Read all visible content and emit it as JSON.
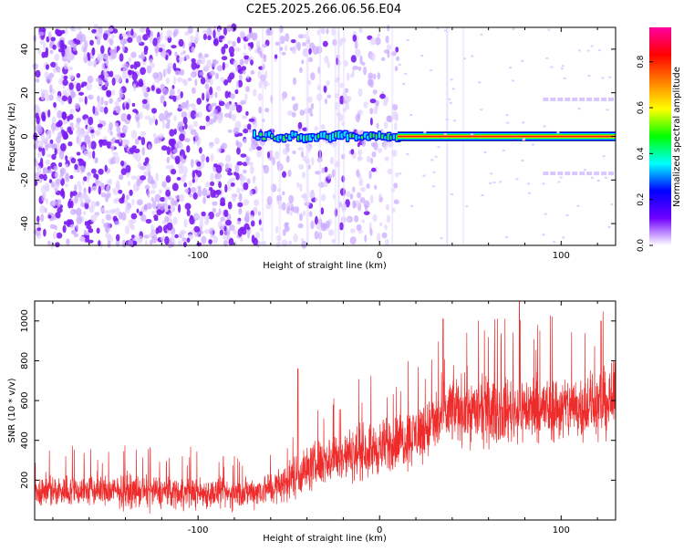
{
  "title": "C2E5.2025.266.06.56.E04",
  "chart_data": [
    {
      "type": "heatmap",
      "xlabel": "Height of straight line (km)",
      "ylabel": "Frequency (Hz)",
      "xlim": [
        -190,
        130
      ],
      "ylim": [
        -50,
        50
      ],
      "xticks": [
        -100,
        0,
        100
      ],
      "yticks": [
        -40,
        -20,
        0,
        20,
        40
      ],
      "colorbar": {
        "label": "Normalized spectral amplitude",
        "range": [
          0,
          0.95
        ],
        "ticks": [
          0.0,
          0.2,
          0.4,
          0.6,
          0.8
        ],
        "colormap": [
          "#ffffff",
          "#7000ff",
          "#0000ff",
          "#00ffff",
          "#00ff00",
          "#ffff00",
          "#ff8000",
          "#ff0000",
          "#ff00a0"
        ]
      },
      "features": [
        {
          "name": "noise-dense",
          "x_range": [
            -190,
            -65
          ],
          "y_range": [
            -50,
            50
          ],
          "level": 0.1
        },
        {
          "name": "noise-sparse",
          "x_range": [
            -65,
            10
          ],
          "y_range": [
            -50,
            50
          ],
          "level": 0.05
        },
        {
          "name": "carrier-fragmented",
          "x_range": [
            -70,
            10
          ],
          "y": 0,
          "level": 0.4
        },
        {
          "name": "carrier-steady",
          "x_range": [
            10,
            130
          ],
          "y": 0,
          "level": 0.95
        },
        {
          "name": "sideband-upper",
          "x_range": [
            90,
            130
          ],
          "y": 17,
          "level": 0.05
        },
        {
          "name": "sideband-lower",
          "x_range": [
            90,
            130
          ],
          "y": -17,
          "level": 0.05
        }
      ]
    },
    {
      "type": "line",
      "xlabel": "Height of straight line (km)",
      "ylabel": "SNR (10 * v/v)",
      "xlim": [
        -190,
        130
      ],
      "ylim": [
        0,
        1100
      ],
      "xticks": [
        -100,
        0,
        100
      ],
      "yticks": [
        200,
        400,
        600,
        800,
        1000
      ],
      "color": "#ee2c2c",
      "envelope": {
        "x": [
          -190,
          -150,
          -110,
          -80,
          -65,
          -55,
          -45,
          -30,
          -15,
          0,
          10,
          20,
          30,
          40,
          60,
          80,
          100,
          120,
          130
        ],
        "mean": [
          150,
          145,
          140,
          130,
          150,
          170,
          230,
          300,
          330,
          360,
          390,
          430,
          480,
          560,
          540,
          560,
          560,
          580,
          600
        ],
        "spread": [
          130,
          130,
          130,
          120,
          130,
          150,
          180,
          200,
          210,
          220,
          230,
          240,
          260,
          280,
          260,
          270,
          270,
          280,
          280
        ]
      },
      "peaks": [
        {
          "x": -45,
          "y": 760
        },
        {
          "x": 35,
          "y": 1010
        },
        {
          "x": 77,
          "y": 1100
        },
        {
          "x": 122,
          "y": 1000
        }
      ]
    }
  ]
}
